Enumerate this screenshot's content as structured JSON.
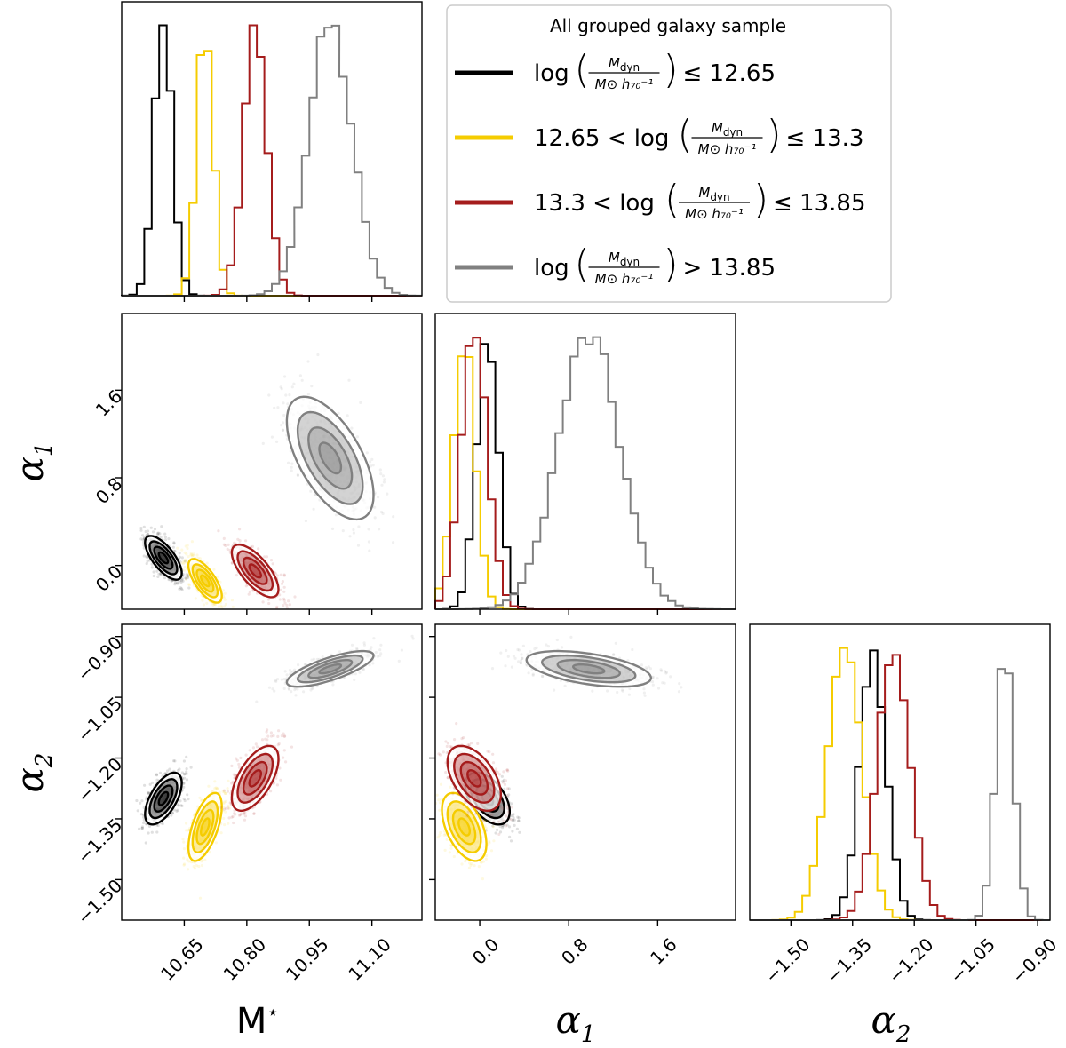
{
  "chart_data": {
    "type": "corner",
    "title": "All grouped galaxy sample",
    "parameters": [
      {
        "name": "M_star",
        "label": "M",
        "label_sup": "⋆",
        "range": [
          10.5,
          11.22
        ],
        "ticks": [
          "10.65",
          "10.80",
          "10.95",
          "11.10"
        ],
        "tick_values": [
          10.65,
          10.8,
          10.95,
          11.1
        ]
      },
      {
        "name": "alpha1",
        "label": "α",
        "label_sub": "1",
        "range": [
          -0.4,
          2.3
        ],
        "ticks": [
          "0.0",
          "0.8",
          "1.6"
        ],
        "tick_values": [
          0.0,
          0.8,
          1.6
        ]
      },
      {
        "name": "alpha2",
        "label": "α",
        "label_sub": "2",
        "range": [
          -1.6,
          -0.87
        ],
        "ticks": [
          "−1.50",
          "−1.35",
          "−1.20",
          "−1.05",
          "−0.90"
        ],
        "tick_values": [
          -1.5,
          -1.35,
          -1.2,
          -1.05,
          -0.9
        ]
      }
    ],
    "series": [
      {
        "name": "log(Mdyn) <= 12.65",
        "color": "#000000",
        "legend": {
          "pre": "log",
          "num": "M",
          "numsub": "dyn",
          "den": "M⊙ h₇₀⁻¹",
          "post": "≤ 12.65"
        },
        "mean": [
          10.6,
          0.07,
          -1.3
        ],
        "std": [
          0.022,
          0.1,
          0.032
        ],
        "corr": [
          -0.7,
          0.6,
          -0.5
        ]
      },
      {
        "name": "12.65 < log(Mdyn) <= 13.3",
        "color": "#f5cc00",
        "legend": {
          "pre": "12.65 < log",
          "num": "M",
          "numsub": "dyn",
          "den": "M⊙ h₇₀⁻¹",
          "post": "≤ 13.3"
        },
        "mean": [
          10.7,
          -0.14,
          -1.37
        ],
        "std": [
          0.02,
          0.1,
          0.042
        ],
        "corr": [
          -0.7,
          0.6,
          -0.5
        ]
      },
      {
        "name": "13.3 < log(Mdyn) <= 13.85",
        "color": "#a51c1c",
        "legend": {
          "pre": "13.3 < log",
          "num": "M",
          "numsub": "dyn",
          "den": "M⊙ h₇₀⁻¹",
          "post": "≤ 13.85"
        },
        "mean": [
          10.82,
          -0.05,
          -1.25
        ],
        "std": [
          0.028,
          0.12,
          0.04
        ],
        "corr": [
          -0.7,
          0.6,
          -0.5
        ]
      },
      {
        "name": "log(Mdyn) > 13.85",
        "color": "#808080",
        "legend": {
          "pre": "log",
          "num": "M",
          "numsub": "dyn",
          "den": "M⊙ h₇₀⁻¹",
          "post": "> 13.85"
        },
        "mean": [
          11.0,
          0.98,
          -0.98
        ],
        "std": [
          0.052,
          0.28,
          0.022
        ],
        "corr": [
          -0.6,
          0.75,
          -0.5
        ]
      }
    ]
  }
}
